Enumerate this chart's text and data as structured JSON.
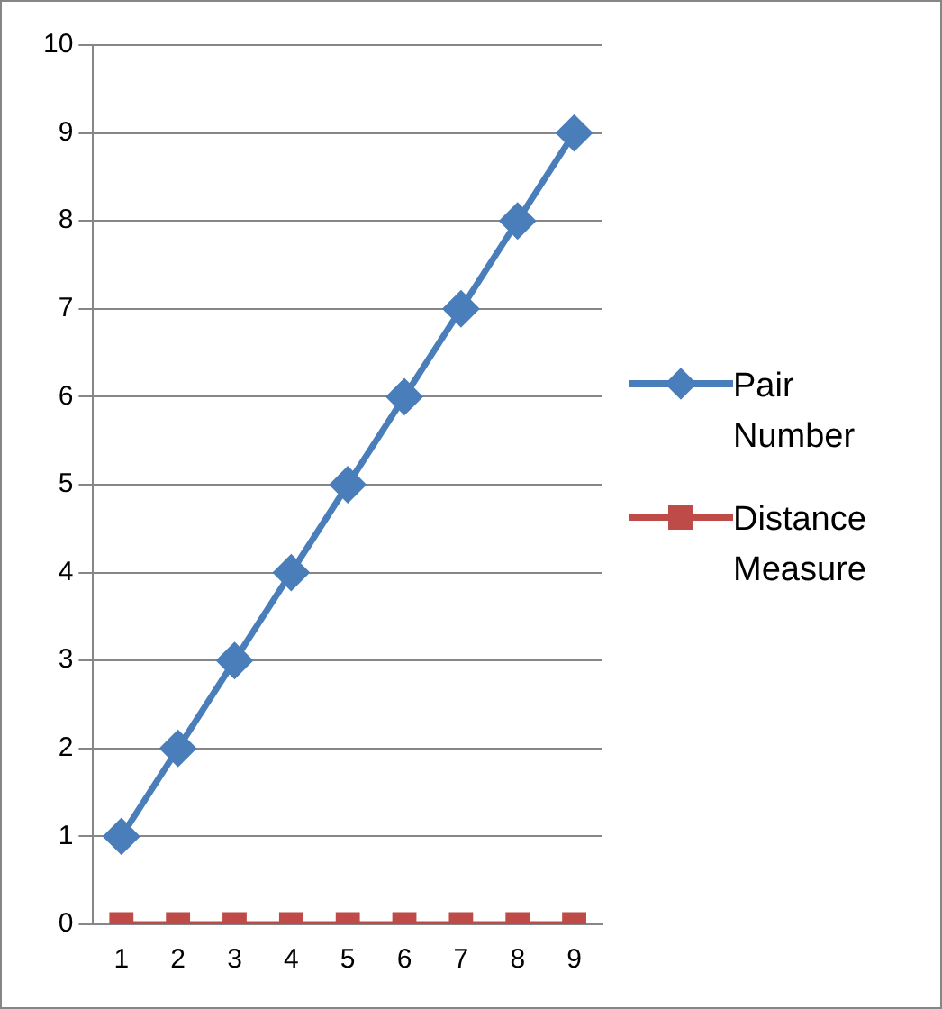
{
  "chart_data": {
    "type": "line",
    "categories": [
      "1",
      "2",
      "3",
      "4",
      "5",
      "6",
      "7",
      "8",
      "9"
    ],
    "series": [
      {
        "name": "Pair Number",
        "color": "#4a7ebb",
        "marker": "diamond",
        "values": [
          1,
          2,
          3,
          4,
          5,
          6,
          7,
          8,
          9
        ]
      },
      {
        "name": "Distance Measure",
        "color": "#be4b48",
        "marker": "square",
        "values": [
          0,
          0,
          0,
          0,
          0,
          0,
          0,
          0,
          0
        ]
      }
    ],
    "ylim": [
      0,
      10
    ],
    "yticks": [
      0,
      1,
      2,
      3,
      4,
      5,
      6,
      7,
      8,
      9,
      10
    ],
    "grid": "y",
    "legend": "right",
    "line_style": "solid"
  }
}
